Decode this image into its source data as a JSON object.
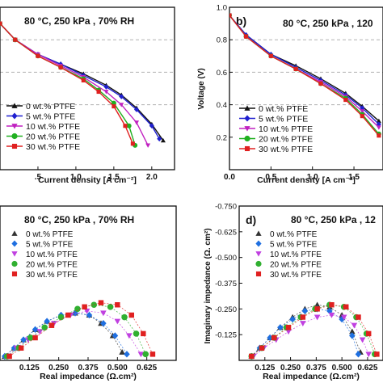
{
  "chart_data": [
    {
      "panel": "a",
      "type": "line",
      "title": "80 °C, 250 kPa , 70% RH",
      "xlabel": "Current density [A cm⁻²]",
      "ylabel": "",
      "xlim": [
        0,
        2.3
      ],
      "ylim": [
        0,
        1.0
      ],
      "x_ticks": [
        0.5,
        1.0,
        1.5,
        2.0
      ],
      "x_tick_labels": [
        ".5",
        "1.0",
        "1.5",
        "2.0"
      ],
      "legend_position": "bottom-left",
      "series": [
        {
          "name": "0 wt.% PTFE",
          "color": "#111111",
          "marker": "triangle-up",
          "x": [
            0,
            0.2,
            0.5,
            0.8,
            1.1,
            1.4,
            1.6,
            1.8,
            2.0,
            2.15
          ],
          "y": [
            0.9,
            0.8,
            0.71,
            0.65,
            0.59,
            0.52,
            0.46,
            0.38,
            0.28,
            0.18
          ]
        },
        {
          "name": "5 wt.% PTFE",
          "color": "#1f1fd0",
          "marker": "diamond",
          "x": [
            0,
            0.2,
            0.5,
            0.8,
            1.1,
            1.4,
            1.6,
            1.8,
            2.0,
            2.1
          ],
          "y": [
            0.9,
            0.8,
            0.71,
            0.65,
            0.58,
            0.51,
            0.45,
            0.37,
            0.27,
            0.19
          ]
        },
        {
          "name": "10 wt.% PTFE",
          "color": "#c020c0",
          "marker": "triangle-down",
          "x": [
            0,
            0.2,
            0.5,
            0.8,
            1.1,
            1.4,
            1.6,
            1.8,
            1.95
          ],
          "y": [
            0.9,
            0.8,
            0.71,
            0.64,
            0.57,
            0.48,
            0.4,
            0.29,
            0.15
          ]
        },
        {
          "name": "20 wt.% PTFE",
          "color": "#20b020",
          "marker": "circle",
          "x": [
            0,
            0.2,
            0.5,
            0.8,
            1.1,
            1.3,
            1.5,
            1.7,
            1.78
          ],
          "y": [
            0.9,
            0.8,
            0.7,
            0.63,
            0.56,
            0.49,
            0.41,
            0.27,
            0.15
          ]
        },
        {
          "name": "30 wt.% PTFE",
          "color": "#e02020",
          "marker": "square",
          "x": [
            0,
            0.2,
            0.5,
            0.8,
            1.1,
            1.3,
            1.5,
            1.65,
            1.75
          ],
          "y": [
            0.9,
            0.8,
            0.7,
            0.63,
            0.55,
            0.48,
            0.39,
            0.27,
            0.16
          ]
        }
      ]
    },
    {
      "panel": "b",
      "type": "line",
      "title": "80 °C, 250 kPa , 120",
      "panel_label": "b)",
      "xlabel": "Current density [A cm⁻²]",
      "ylabel": "Voltage (V)",
      "xlim": [
        0,
        1.85
      ],
      "ylim": [
        0,
        1.0
      ],
      "x_ticks": [
        0.0,
        0.5,
        1.0,
        1.5
      ],
      "x_tick_labels": [
        "0.0",
        "0.5",
        "1.0",
        "1.5"
      ],
      "y_ticks": [
        0.2,
        0.4,
        0.6,
        0.8,
        1.0
      ],
      "y_tick_labels": [
        "0.2",
        "0.4",
        "0.6",
        "0.8",
        "1.0"
      ],
      "legend_position": "bottom-left",
      "series": [
        {
          "name": "0 wt.% PTFE",
          "color": "#111111",
          "marker": "triangle-up",
          "x": [
            0,
            0.2,
            0.5,
            0.8,
            1.1,
            1.4,
            1.6,
            1.8
          ],
          "y": [
            0.95,
            0.83,
            0.71,
            0.64,
            0.56,
            0.47,
            0.39,
            0.3
          ]
        },
        {
          "name": "5 wt.% PTFE",
          "color": "#1f1fd0",
          "marker": "diamond",
          "x": [
            0,
            0.2,
            0.5,
            0.8,
            1.1,
            1.4,
            1.6,
            1.8
          ],
          "y": [
            0.95,
            0.83,
            0.71,
            0.63,
            0.55,
            0.46,
            0.38,
            0.28
          ]
        },
        {
          "name": "10 wt.% PTFE",
          "color": "#c020c0",
          "marker": "triangle-down",
          "x": [
            0,
            0.2,
            0.5,
            0.8,
            1.1,
            1.4,
            1.6,
            1.8
          ],
          "y": [
            0.95,
            0.82,
            0.7,
            0.62,
            0.54,
            0.45,
            0.36,
            0.26
          ]
        },
        {
          "name": "20 wt.% PTFE",
          "color": "#20b020",
          "marker": "circle",
          "x": [
            0,
            0.2,
            0.5,
            0.8,
            1.1,
            1.4,
            1.6,
            1.8
          ],
          "y": [
            0.95,
            0.82,
            0.7,
            0.62,
            0.53,
            0.44,
            0.34,
            0.22
          ]
        },
        {
          "name": "30 wt.% PTFE",
          "color": "#e02020",
          "marker": "square",
          "x": [
            0,
            0.2,
            0.5,
            0.8,
            1.1,
            1.4,
            1.6,
            1.8
          ],
          "y": [
            0.95,
            0.82,
            0.7,
            0.62,
            0.53,
            0.43,
            0.33,
            0.21
          ]
        }
      ]
    },
    {
      "panel": "c",
      "type": "scatter",
      "title": "80 °C, 250 kPa , 70% RH",
      "xlabel": "Real impedance (Ω.cm²)",
      "ylabel": "",
      "xlim": [
        0.0,
        0.75
      ],
      "ylim": [
        0,
        -0.75
      ],
      "x_ticks": [
        0.125,
        0.25,
        0.375,
        0.5,
        0.625
      ],
      "x_tick_labels": [
        "0.125",
        "0.250",
        "0.375",
        "0.500",
        "0.625"
      ],
      "legend_position": "top-left",
      "series": [
        {
          "name": "0 wt.% PTFE",
          "color": "#333333",
          "marker": "triangle-up",
          "x": [
            0.02,
            0.06,
            0.1,
            0.15,
            0.2,
            0.26,
            0.32,
            0.38,
            0.43,
            0.48,
            0.52
          ],
          "y": [
            -0.02,
            -0.06,
            -0.1,
            -0.15,
            -0.19,
            -0.22,
            -0.23,
            -0.22,
            -0.18,
            -0.12,
            -0.04
          ]
        },
        {
          "name": "5 wt.% PTFE",
          "color": "#1f6fe0",
          "marker": "diamond",
          "x": [
            0.02,
            0.06,
            0.1,
            0.15,
            0.2,
            0.26,
            0.32,
            0.38,
            0.44,
            0.49,
            0.54
          ],
          "y": [
            -0.02,
            -0.06,
            -0.1,
            -0.15,
            -0.19,
            -0.22,
            -0.23,
            -0.22,
            -0.18,
            -0.12,
            -0.03
          ]
        },
        {
          "name": "10 wt.% PTFE",
          "color": "#c040e0",
          "marker": "triangle-down",
          "x": [
            0.03,
            0.07,
            0.12,
            0.17,
            0.23,
            0.3,
            0.37,
            0.44,
            0.5,
            0.55,
            0.6
          ],
          "y": [
            -0.02,
            -0.06,
            -0.1,
            -0.14,
            -0.18,
            -0.22,
            -0.24,
            -0.23,
            -0.19,
            -0.12,
            -0.03
          ]
        },
        {
          "name": "20 wt.% PTFE",
          "color": "#30b030",
          "marker": "circle",
          "x": [
            0.03,
            0.08,
            0.13,
            0.19,
            0.26,
            0.33,
            0.4,
            0.47,
            0.53,
            0.58,
            0.62
          ],
          "y": [
            -0.02,
            -0.06,
            -0.11,
            -0.16,
            -0.21,
            -0.25,
            -0.27,
            -0.26,
            -0.21,
            -0.13,
            -0.03
          ]
        },
        {
          "name": "30 wt.% PTFE",
          "color": "#e02020",
          "marker": "square",
          "x": [
            0.04,
            0.09,
            0.15,
            0.22,
            0.29,
            0.36,
            0.43,
            0.5,
            0.56,
            0.61,
            0.65
          ],
          "y": [
            -0.02,
            -0.06,
            -0.11,
            -0.17,
            -0.22,
            -0.26,
            -0.28,
            -0.27,
            -0.22,
            -0.13,
            -0.03
          ]
        }
      ]
    },
    {
      "panel": "d",
      "type": "scatter",
      "title": "80 °C, 250 kPa , 12",
      "panel_label": "d)",
      "xlabel": "Real impedance (Ω.cm²)",
      "ylabel": "Imaginary impedance (Ω. cm²)",
      "xlim": [
        0.0,
        0.7
      ],
      "ylim": [
        0,
        -0.75
      ],
      "x_ticks": [
        0.125,
        0.25,
        0.375,
        0.5,
        0.625
      ],
      "x_tick_labels": [
        "0.125",
        "0.250",
        "0.375",
        "0.500",
        "0.625"
      ],
      "y_ticks": [
        -0.125,
        -0.25,
        -0.375,
        -0.5,
        -0.625,
        -0.75
      ],
      "y_tick_labels": [
        "-0.125",
        "-0.250",
        "-0.375",
        "-0.500",
        "-0.625",
        "-0.750"
      ],
      "legend_position": "top-left",
      "series": [
        {
          "name": "0 wt.% PTFE",
          "color": "#333333",
          "marker": "triangle-up",
          "x": [
            0.06,
            0.1,
            0.15,
            0.2,
            0.26,
            0.32,
            0.38,
            0.44,
            0.5,
            0.55,
            0.59
          ],
          "y": [
            -0.02,
            -0.06,
            -0.11,
            -0.16,
            -0.21,
            -0.25,
            -0.27,
            -0.26,
            -0.22,
            -0.14,
            -0.04
          ]
        },
        {
          "name": "5 wt.% PTFE",
          "color": "#1f6fe0",
          "marker": "diamond",
          "x": [
            0.06,
            0.1,
            0.15,
            0.2,
            0.26,
            0.32,
            0.38,
            0.44,
            0.5,
            0.55,
            0.58
          ],
          "y": [
            -0.02,
            -0.06,
            -0.11,
            -0.16,
            -0.2,
            -0.24,
            -0.25,
            -0.24,
            -0.2,
            -0.12,
            -0.03
          ]
        },
        {
          "name": "10 wt.% PTFE",
          "color": "#c040e0",
          "marker": "triangle-down",
          "x": [
            0.07,
            0.12,
            0.18,
            0.24,
            0.31,
            0.38,
            0.45,
            0.51,
            0.56,
            0.6,
            0.63
          ],
          "y": [
            -0.02,
            -0.06,
            -0.1,
            -0.14,
            -0.18,
            -0.21,
            -0.22,
            -0.21,
            -0.17,
            -0.1,
            -0.03
          ]
        },
        {
          "name": "20 wt.% PTFE",
          "color": "#30b030",
          "marker": "circle",
          "x": [
            0.06,
            0.11,
            0.17,
            0.23,
            0.3,
            0.37,
            0.44,
            0.51,
            0.57,
            0.62,
            0.66
          ],
          "y": [
            -0.02,
            -0.06,
            -0.11,
            -0.16,
            -0.21,
            -0.25,
            -0.27,
            -0.26,
            -0.21,
            -0.13,
            -0.03
          ]
        },
        {
          "name": "30 wt.% PTFE",
          "color": "#e02020",
          "marker": "square",
          "x": [
            0.06,
            0.11,
            0.17,
            0.24,
            0.31,
            0.38,
            0.45,
            0.52,
            0.58,
            0.63,
            0.67
          ],
          "y": [
            -0.02,
            -0.06,
            -0.11,
            -0.16,
            -0.21,
            -0.25,
            -0.27,
            -0.26,
            -0.21,
            -0.13,
            -0.03
          ]
        }
      ]
    }
  ]
}
